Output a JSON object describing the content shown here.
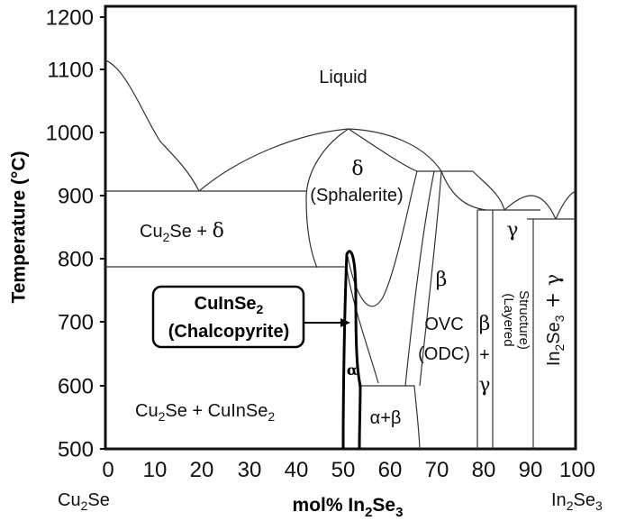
{
  "chart_data": {
    "type": "phase-diagram",
    "ylabel": "Temperature (°C)",
    "xlabel": {
      "main": "mol% In",
      "sub": "2",
      "tail": "Se",
      "sub2": "3"
    },
    "x_ticks": [
      "0",
      "10",
      "20",
      "30",
      "40",
      "50",
      "60",
      "70",
      "80",
      "90",
      "100"
    ],
    "y_ticks": [
      "500",
      "600",
      "700",
      "800",
      "900",
      "1000",
      "1100",
      "1200"
    ],
    "xlim": [
      0,
      100
    ],
    "ylim": [
      500,
      1210
    ],
    "endpoint_left": {
      "base": "Cu",
      "sub": "2",
      "tail": "Se"
    },
    "endpoint_right": {
      "base": "In",
      "sub": "2",
      "tail": "Se",
      "sub2": "3"
    },
    "regions": {
      "liquid": "Liquid",
      "delta": "δ",
      "sphalerite": "(Sphalerite)",
      "cu2se_delta": {
        "a": "Cu",
        "b": "2",
        "c": "Se + ",
        "d": "δ"
      },
      "beta": "β",
      "ovc": "OVC",
      "odc": "(ODC)",
      "beta_gamma": [
        "β",
        "+",
        "γ"
      ],
      "gamma": "γ",
      "layered": [
        "(Layered",
        "Structure)"
      ],
      "in2se3_gamma": {
        "a": "In",
        "b": "2",
        "c": "Se",
        "d": "3",
        "e": " + γ"
      },
      "alpha": "α",
      "alpha_beta": "α+β",
      "cu2se_cuinse2": {
        "a": "Cu",
        "b": "2",
        "c": "Se + CuInSe",
        "d": "2"
      }
    },
    "callout": {
      "line1": {
        "a": "CuInSe",
        "b": "2"
      },
      "line2": "(Chalcopyrite)"
    },
    "isotherms": [
      {
        "T": 905,
        "x_from": 0,
        "x_to": 42
      },
      {
        "T": 785,
        "x_from": 0,
        "x_to": 50
      }
    ]
  }
}
